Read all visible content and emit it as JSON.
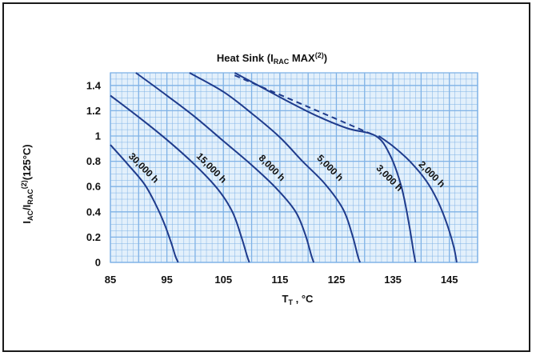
{
  "chart_data": {
    "type": "line",
    "title": {
      "main": "Heat Sink (I",
      "sub": "RAC",
      "after": " MAX",
      "sup": "(2)",
      "end": ")"
    },
    "xlabel": {
      "main": "T",
      "sub": "T",
      "after": " , °C"
    },
    "ylabel": {
      "p1": "I",
      "s1": "AC",
      "p2": "/I",
      "s2": "RAC",
      "sup": "(2)",
      "p3": "(125°C)"
    },
    "xlim": [
      85,
      150
    ],
    "ylim": [
      0,
      1.5
    ],
    "x_ticks": [
      85,
      95,
      105,
      115,
      125,
      135,
      145
    ],
    "x_tick_labels": [
      "85",
      "95",
      "105",
      "115",
      "125",
      "135",
      "145"
    ],
    "y_ticks": [
      0,
      0.2,
      0.4,
      0.6,
      0.8,
      1.0,
      1.2,
      1.4
    ],
    "y_tick_labels": [
      "0",
      "0.2",
      "0.4",
      "0.6",
      "0.8",
      "1",
      "1.2",
      "1.4"
    ],
    "grid": true,
    "colors": {
      "line": "#1f3b8c",
      "grid": "#7fb2e6",
      "plot_bg": "#e3f0fb",
      "text": "#111111"
    },
    "series": [
      {
        "name": "30,000 h",
        "points": [
          [
            85,
            0.93
          ],
          [
            88,
            0.78
          ],
          [
            91,
            0.62
          ],
          [
            93,
            0.46
          ],
          [
            94.6,
            0.3
          ],
          [
            95.8,
            0.15
          ],
          [
            96.5,
            0.05
          ],
          [
            97,
            0
          ]
        ]
      },
      {
        "name": "15,000 h",
        "points": [
          [
            85,
            1.32
          ],
          [
            90,
            1.15
          ],
          [
            95,
            0.97
          ],
          [
            100,
            0.77
          ],
          [
            104,
            0.58
          ],
          [
            106.6,
            0.4
          ],
          [
            108.2,
            0.2
          ],
          [
            109.2,
            0.05
          ],
          [
            109.6,
            0
          ]
        ]
      },
      {
        "name": "8,000 h",
        "points": [
          [
            89.5,
            1.5
          ],
          [
            95,
            1.32
          ],
          [
            100,
            1.15
          ],
          [
            105,
            0.96
          ],
          [
            110,
            0.77
          ],
          [
            114.5,
            0.58
          ],
          [
            117.8,
            0.4
          ],
          [
            119.5,
            0.22
          ],
          [
            120.6,
            0.05
          ],
          [
            121,
            0
          ]
        ]
      },
      {
        "name": "5,000 h",
        "points": [
          [
            99,
            1.5
          ],
          [
            105,
            1.35
          ],
          [
            110,
            1.18
          ],
          [
            115,
            0.99
          ],
          [
            119,
            0.8
          ],
          [
            123,
            0.62
          ],
          [
            126.2,
            0.42
          ],
          [
            127.8,
            0.22
          ],
          [
            128.8,
            0.05
          ],
          [
            129.2,
            0
          ]
        ]
      },
      {
        "name": "3,000 h",
        "points": [
          [
            107,
            1.5
          ],
          [
            112,
            1.38
          ],
          [
            117,
            1.26
          ],
          [
            122,
            1.15
          ],
          [
            127,
            1.06
          ],
          [
            132,
            1.0
          ],
          [
            134.5,
            0.85
          ],
          [
            136.5,
            0.6
          ],
          [
            137.8,
            0.32
          ],
          [
            138.6,
            0.1
          ],
          [
            139,
            0
          ]
        ]
      },
      {
        "name": "2,000 h",
        "points": [
          [
            132.5,
            1.0
          ],
          [
            135,
            0.92
          ],
          [
            138,
            0.8
          ],
          [
            141,
            0.64
          ],
          [
            143,
            0.48
          ],
          [
            144.6,
            0.3
          ],
          [
            145.8,
            0.12
          ],
          [
            146.3,
            0
          ]
        ]
      }
    ],
    "dashed_series": {
      "points": [
        [
          107,
          1.48
        ],
        [
          132,
          1.0
        ]
      ]
    },
    "curve_labels": [
      {
        "text": "30,000 h",
        "x": 90.5,
        "y": 0.73
      },
      {
        "text": "15,000 h",
        "x": 102.5,
        "y": 0.73
      },
      {
        "text": "8,000 h",
        "x": 113.2,
        "y": 0.73
      },
      {
        "text": "5,000 h",
        "x": 123.5,
        "y": 0.73
      },
      {
        "text": "3,000 h",
        "x": 134.0,
        "y": 0.65
      },
      {
        "text": "2,000 h",
        "x": 141.5,
        "y": 0.68
      }
    ]
  }
}
